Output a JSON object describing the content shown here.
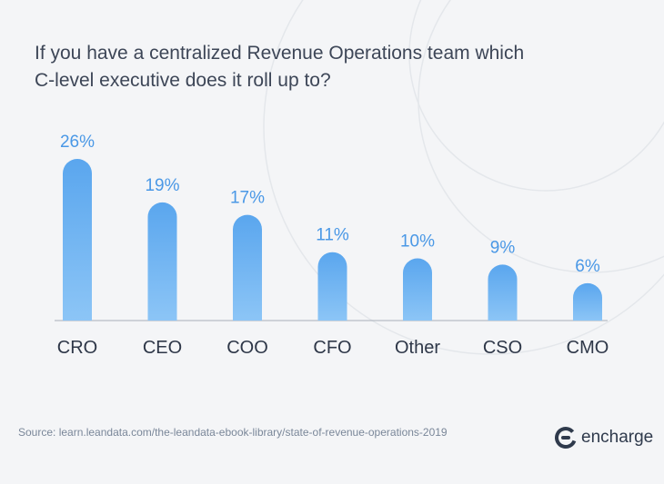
{
  "chart_data": {
    "type": "bar",
    "title": "If you have a centralized Revenue Operations team which C-level executive does it roll up to?",
    "title_lines": [
      "If you have a centralized Revenue Operations team which",
      "C-level executive does it roll up to?"
    ],
    "categories": [
      "CRO",
      "CEO",
      "COO",
      "CFO",
      "Other",
      "CSO",
      "CMO"
    ],
    "values": [
      26,
      19,
      17,
      11,
      10,
      9,
      6
    ],
    "labels": [
      "26%",
      "19%",
      "17%",
      "11%",
      "10%",
      "9%",
      "6%"
    ],
    "unit": "%",
    "xlabel": "",
    "ylabel": "",
    "ylim": [
      0,
      26
    ],
    "grid": false,
    "legend": "none"
  },
  "colors": {
    "bar_top": "#5aa6ee",
    "bar_bottom": "#8cc5f6",
    "value_label": "#4a98e6",
    "category_label": "#2e3748",
    "baseline": "#a7aeb8"
  },
  "footer": {
    "source": "Source: learn.leandata.com/the-leandata-ebook-library/state-of-revenue-operations-2019",
    "brand_name": "encharge",
    "brand_icon": "encharge-logo-icon"
  }
}
